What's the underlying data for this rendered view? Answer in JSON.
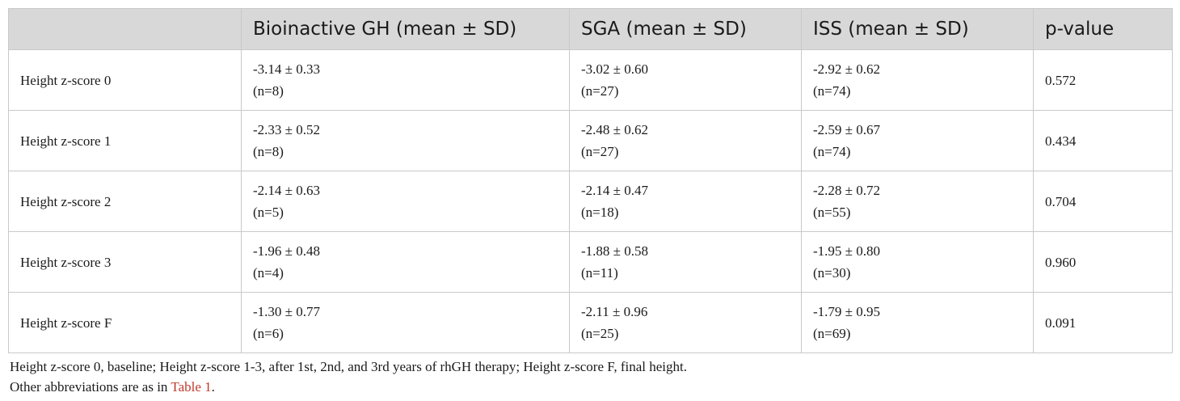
{
  "table": {
    "headers": [
      "",
      "Bioinactive GH (mean ± SD)",
      "SGA (mean ± SD)",
      "ISS (mean ± SD)",
      "p-value"
    ],
    "rows": [
      {
        "label": "Height z-score 0",
        "bioinactive": {
          "value": "-3.14 ± 0.33",
          "n": "(n=8)"
        },
        "sga": {
          "value": "-3.02 ± 0.60",
          "n": "(n=27)"
        },
        "iss": {
          "value": "-2.92 ± 0.62",
          "n": "(n=74)"
        },
        "p": "0.572"
      },
      {
        "label": "Height z-score 1",
        "bioinactive": {
          "value": "-2.33 ± 0.52",
          "n": "(n=8)"
        },
        "sga": {
          "value": "-2.48 ± 0.62",
          "n": "(n=27)"
        },
        "iss": {
          "value": "-2.59 ± 0.67",
          "n": "(n=74)"
        },
        "p": "0.434"
      },
      {
        "label": "Height z-score 2",
        "bioinactive": {
          "value": "-2.14 ± 0.63",
          "n": "(n=5)"
        },
        "sga": {
          "value": "-2.14 ± 0.47",
          "n": "(n=18)"
        },
        "iss": {
          "value": "-2.28 ± 0.72",
          "n": "(n=55)"
        },
        "p": "0.704"
      },
      {
        "label": "Height z-score 3",
        "bioinactive": {
          "value": "-1.96 ± 0.48",
          "n": "(n=4)"
        },
        "sga": {
          "value": "-1.88 ± 0.58",
          "n": "(n=11)"
        },
        "iss": {
          "value": "-1.95 ± 0.80",
          "n": "(n=30)"
        },
        "p": "0.960"
      },
      {
        "label": "Height z-score F",
        "bioinactive": {
          "value": "-1.30 ± 0.77",
          "n": "(n=6)"
        },
        "sga": {
          "value": "-2.11 ± 0.96",
          "n": "(n=25)"
        },
        "iss": {
          "value": "-1.79 ± 0.95",
          "n": "(n=69)"
        },
        "p": "0.091"
      }
    ]
  },
  "footnote": {
    "line1": "Height z-score 0, baseline; Height z-score 1-3, after 1st, 2nd, and 3rd years of rhGH therapy; Height z-score F, final height.",
    "line2_prefix": "Other abbreviations are as in ",
    "line2_link": "Table 1",
    "line2_suffix": "."
  },
  "colors": {
    "header_bg": "#d8d8d8",
    "border": "#c9c9c9",
    "link": "#c0392b"
  }
}
